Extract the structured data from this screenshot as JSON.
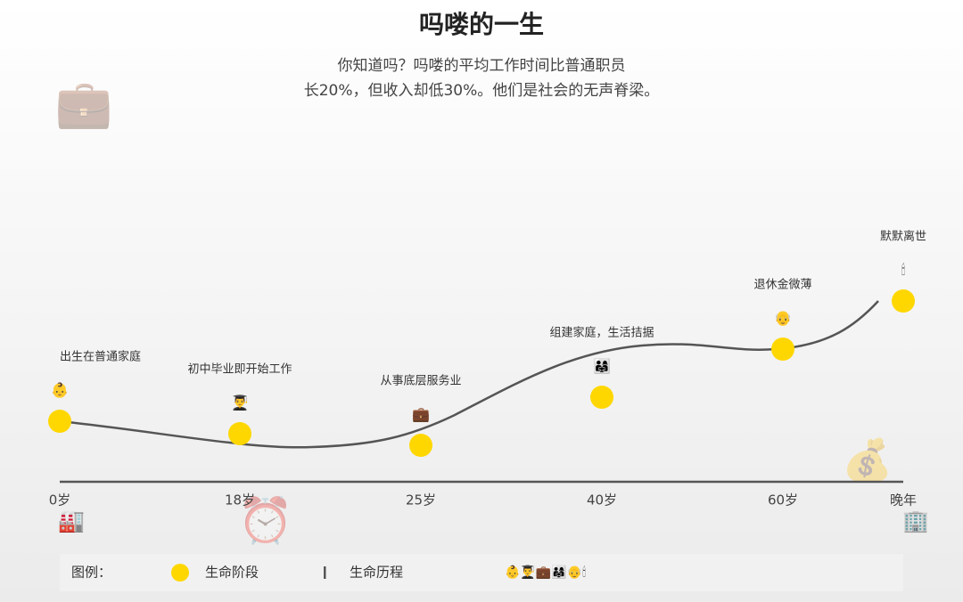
{
  "header": {
    "title": "吗喽的一生",
    "subtitle": [
      "你知道吗？吗喽的平均工作时间比普通职员",
      "长20%，但收入却低30%。他们是社会的无声脊梁。"
    ]
  },
  "stages": [
    {
      "age": "0岁",
      "label": "出生在普通家庭",
      "icon": "👶"
    },
    {
      "age": "18岁",
      "label": "初中毕业即开始工作",
      "icon": "👨‍🎓"
    },
    {
      "age": "25岁",
      "label": "从事底层服务业",
      "icon": "💼"
    },
    {
      "age": "40岁",
      "label": "组建家庭，生活拮据",
      "icon": "👨‍👩‍👧"
    },
    {
      "age": "60岁",
      "label": "退休金微薄",
      "icon": "👴"
    },
    {
      "age": "晚年",
      "label": "默默离世",
      "icon": "🕯"
    }
  ],
  "legend": {
    "title": "图例：",
    "stage": "生命阶段",
    "course": "生命历程",
    "icons": "👶👨‍🎓💼👨‍👩‍👧👴🕯"
  }
}
